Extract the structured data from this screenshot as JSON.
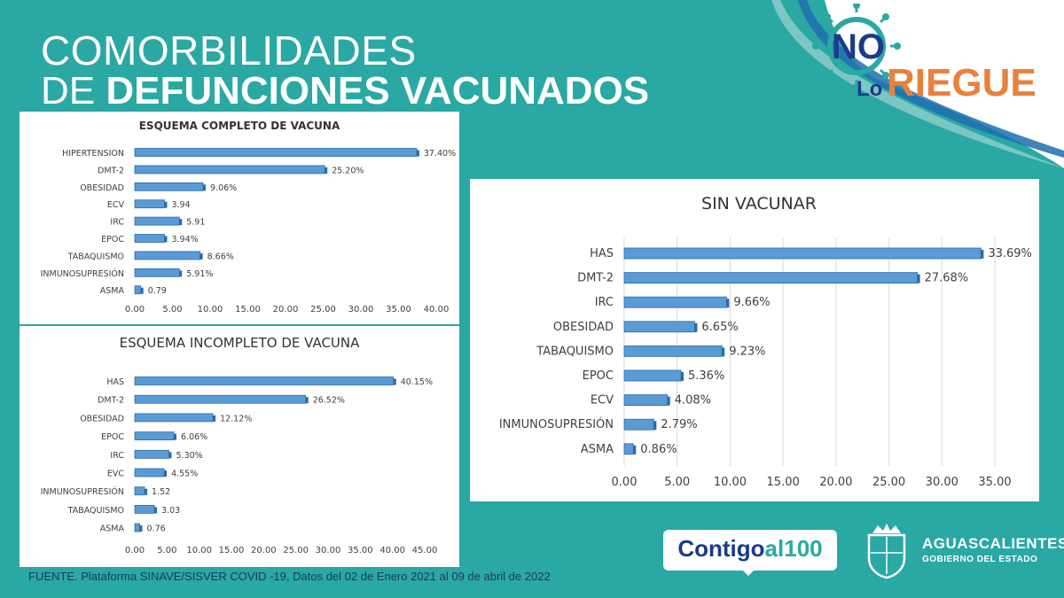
{
  "header": {
    "title_line1": "COMORBILIDADES",
    "title_line2_prefix": "DE ",
    "title_line2_bold": "DEFUNCIONES VACUNADOS"
  },
  "logo": {
    "word_no": "NO",
    "word_lo": "Lo",
    "word_riegues": "RIEGUES"
  },
  "footer": {
    "source": "FUENTE. Plataforma SINAVE/SISVER COVID -19, Datos del 02 de Enero 2021 al 09 de abril de 2022",
    "contigo_a": "Contigo",
    "contigo_b": "al100",
    "gov_name": "AGUASCALIENTES",
    "gov_sub": "GOBIERNO DEL ESTADO"
  },
  "colors": {
    "background": "#2aa8a3",
    "bar": "#5b9bd5",
    "bar_dark": "#2e6aa8"
  },
  "chart_data": [
    {
      "type": "bar",
      "orientation": "horizontal",
      "title": "ESQUEMA COMPLETO DE VACUNA",
      "categories": [
        "HIPERTENSION",
        "DMT-2",
        "OBESIDAD",
        "ECV",
        "IRC",
        "EPOC",
        "TABAQUISMO",
        "INMUNOSUPRESIÓN",
        "ASMA"
      ],
      "values": [
        37.4,
        25.2,
        9.06,
        3.94,
        5.91,
        3.94,
        8.66,
        5.91,
        0.79
      ],
      "labels": [
        "37.40%",
        "25.20%",
        "9.06%",
        "3.94",
        "5.91",
        "3.94%",
        "8.66%",
        "5.91%",
        "0.79"
      ],
      "xlim": [
        0,
        40
      ],
      "ticks": [
        "0.00",
        "5.00",
        "10.00",
        "15.00",
        "20.00",
        "25.00",
        "30.00",
        "35.00",
        "40.00"
      ]
    },
    {
      "type": "bar",
      "orientation": "horizontal",
      "title": "ESQUEMA INCOMPLETO DE VACUNA",
      "categories": [
        "HAS",
        "DMT-2",
        "OBESIDAD",
        "EPOC",
        "IRC",
        "EVC",
        "INMUNOSUPRESIÓN",
        "TABAQUISMO",
        "ASMA"
      ],
      "values": [
        40.15,
        26.52,
        12.12,
        6.06,
        5.3,
        4.55,
        1.52,
        3.03,
        0.76
      ],
      "labels": [
        "40.15%",
        "26.52%",
        "12.12%",
        "6.06%",
        "5.30%",
        "4.55%",
        "1.52",
        "3.03",
        "0.76"
      ],
      "xlim": [
        0,
        45
      ],
      "ticks": [
        "0.00",
        "5.00",
        "10.00",
        "15.00",
        "20.00",
        "25.00",
        "30.00",
        "35.00",
        "40.00",
        "45.00"
      ]
    },
    {
      "type": "bar",
      "orientation": "horizontal",
      "title": "SIN VACUNAR",
      "categories": [
        "HAS",
        "DMT-2",
        "IRC",
        "OBESIDAD",
        "TABAQUISMO",
        "EPOC",
        "ECV",
        "INMUNOSUPRESIÓN",
        "ASMA"
      ],
      "values": [
        33.69,
        27.68,
        9.66,
        6.65,
        9.23,
        5.36,
        4.08,
        2.79,
        0.86
      ],
      "labels": [
        "33.69%",
        "27.68%",
        "9.66%",
        "6.65%",
        "9.23%",
        "5.36%",
        "4.08%",
        "2.79%",
        "0.86%"
      ],
      "xlim": [
        0,
        35
      ],
      "grid": true,
      "ticks": [
        "0.00",
        "5.00",
        "10.00",
        "15.00",
        "20.00",
        "25.00",
        "30.00",
        "35.00"
      ]
    }
  ]
}
